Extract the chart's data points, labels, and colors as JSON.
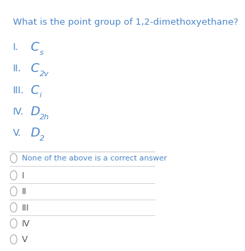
{
  "title": "What is the point group of 1,2-dimethoxyethane?",
  "title_color": "#4a86c8",
  "title_fontsize": 9.5,
  "bg_color": "#ffffff",
  "options": [
    {
      "label": "I.",
      "main": "C",
      "sub": "s"
    },
    {
      "label": "II.",
      "main": "C",
      "sub": "2v"
    },
    {
      "label": "III.",
      "main": "C",
      "sub": "i"
    },
    {
      "label": "IV.",
      "main": "D",
      "sub": "2h"
    },
    {
      "label": "V.",
      "main": "D",
      "sub": "2"
    }
  ],
  "options_color": "#4a86c8",
  "radio_options": [
    "None of the above is a correct answer",
    "I",
    "II",
    "III",
    "IV",
    "V"
  ],
  "radio_color_special": "#4a86c8",
  "radio_color_normal": "#555555",
  "line_color": "#cccccc"
}
